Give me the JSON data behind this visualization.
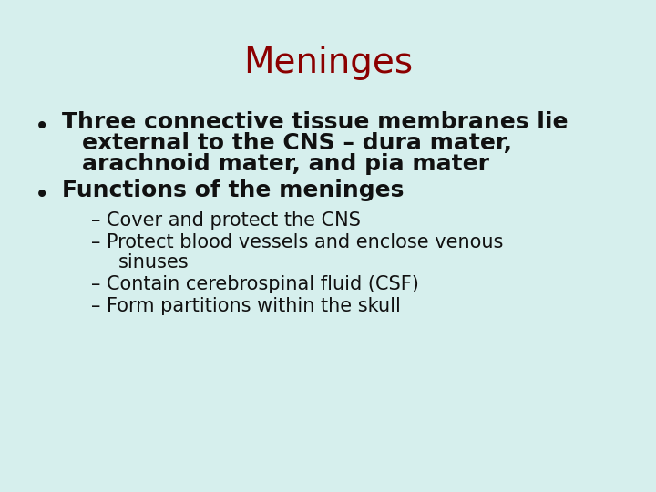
{
  "title": "Meninges",
  "title_color": "#8B0000",
  "title_fontsize": 28,
  "background_color": "#d6efed",
  "text_color": "#111111",
  "bullet1_line1": "Three connective tissue membranes lie",
  "bullet1_line2": "external to the CNS – dura mater,",
  "bullet1_line3": "arachnoid mater, and pia mater",
  "bullet2": "Functions of the meninges",
  "sub1": "– Cover and protect the CNS",
  "sub2_line1": "– Protect blood vessels and enclose venous",
  "sub2_line2": "sinuses",
  "sub3": "– Contain cerebrospinal fluid (CSF)",
  "sub4": "– Form partitions within the skull",
  "main_fontsize": 18,
  "sub_fontsize": 15,
  "bullet_symbol": "•"
}
